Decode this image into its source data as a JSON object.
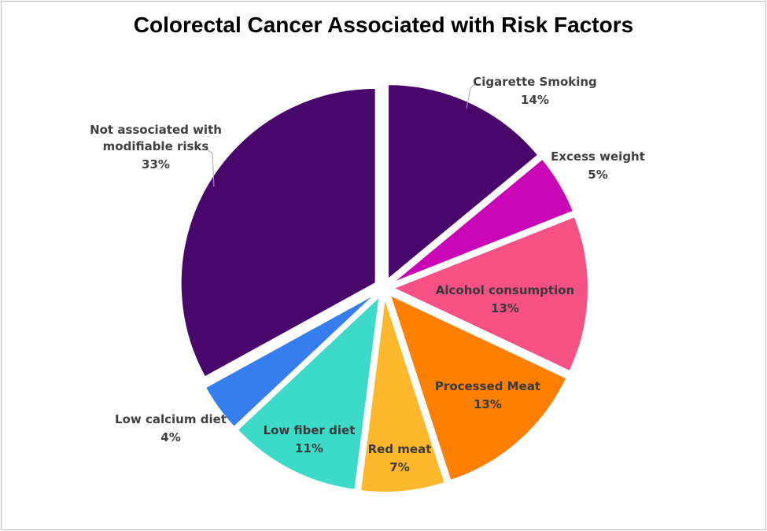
{
  "chart_data": {
    "type": "pie",
    "title": "Colorectal Cancer Associated with Risk Factors",
    "exploded": true,
    "slices": [
      {
        "name": "Cigarette Smoking",
        "label": "14%",
        "value": 14,
        "color": "#48086b"
      },
      {
        "name": "Excess weight",
        "label": "5%",
        "value": 5,
        "color": "#c806b5"
      },
      {
        "name": "Alcohol consumption",
        "label": "13%",
        "value": 13,
        "color": "#f55283"
      },
      {
        "name": "Processed Meat",
        "label": "13%",
        "value": 13,
        "color": "#fc7f00"
      },
      {
        "name": "Red meat",
        "label": "7%",
        "value": 7,
        "color": "#fdb72d"
      },
      {
        "name": "Low fiber diet",
        "label": "11%",
        "value": 11,
        "color": "#3dd9c9"
      },
      {
        "name": "Low calcium diet",
        "label": "4%",
        "value": 4,
        "color": "#367eee"
      },
      {
        "name": "Not associated with modifiable risks",
        "label": "33%",
        "value": 33,
        "color": "#48086b"
      }
    ]
  }
}
